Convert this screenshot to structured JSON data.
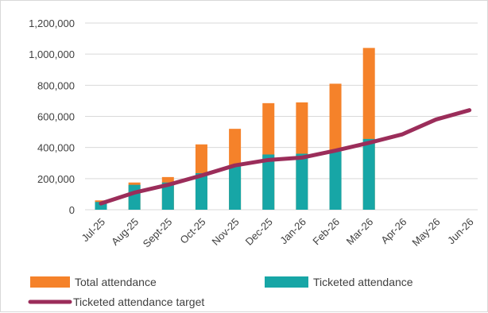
{
  "chart_data": {
    "type": "bar",
    "categories": [
      "Jul-25",
      "Aug-25",
      "Sept-25",
      "Oct-25",
      "Nov-25",
      "Dec-25",
      "Jan-26",
      "Feb-26",
      "Mar-26",
      "Apr-26",
      "May-26",
      "Jun-26"
    ],
    "series": [
      {
        "name": "Ticketed attendance",
        "kind": "bar",
        "stack": "attendance",
        "color": "#17a6a6",
        "values": [
          50000,
          160000,
          175000,
          235000,
          285000,
          355000,
          360000,
          375000,
          455000,
          null,
          null,
          null
        ]
      },
      {
        "name": "Total attendance",
        "kind": "bar",
        "stack": "attendance",
        "color": "#f5822a",
        "values": [
          60000,
          175000,
          210000,
          420000,
          520000,
          685000,
          690000,
          810000,
          1040000,
          null,
          null,
          null
        ]
      },
      {
        "name": "Ticketed attendance target",
        "kind": "line",
        "color": "#9b2d5a",
        "values": [
          40000,
          110000,
          160000,
          220000,
          285000,
          320000,
          335000,
          380000,
          430000,
          485000,
          580000,
          640000
        ]
      }
    ],
    "y_ticks": [
      "0",
      "200,000",
      "400,000",
      "600,000",
      "800,000",
      "1,000,000",
      "1,200,000"
    ],
    "ylim": [
      0,
      1200000
    ],
    "grid": true,
    "legend_position": "bottom"
  }
}
